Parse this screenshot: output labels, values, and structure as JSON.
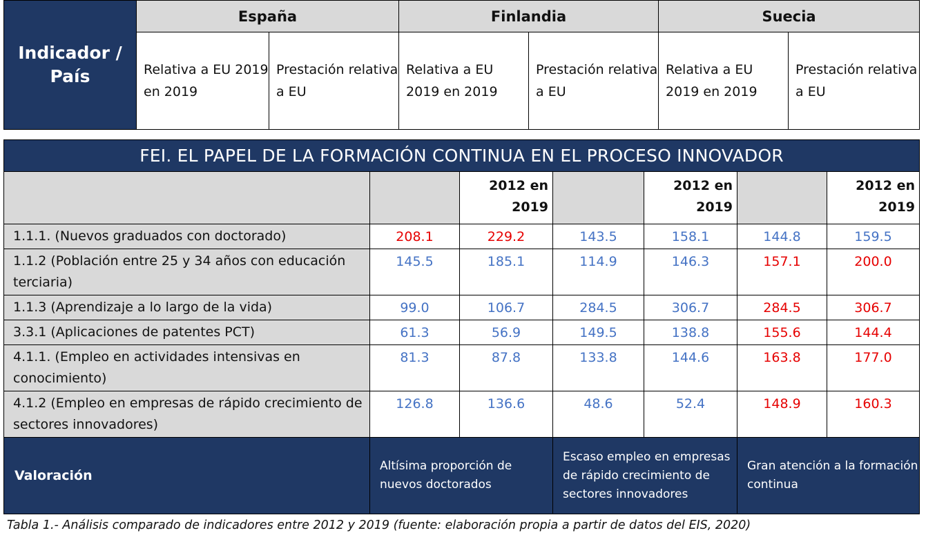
{
  "header": {
    "indicator_label": "Indicador / País",
    "countries": [
      "España",
      "Finlandia",
      "Suecia"
    ],
    "sub_relativa": "Relativa a EU 2019 en 2019",
    "sub_prestacion": "Prestación relativa a EU"
  },
  "table": {
    "title": "FEI. EL PAPEL DE LA FORMACIÓN CONTINUA EN EL PROCESO INNOVADOR",
    "year_header": "2012 en 2019",
    "rows": [
      {
        "label": "1.1.1. (Nuevos graduados con doctorado)",
        "values": [
          "208.1",
          "229.2",
          "143.5",
          "158.1",
          "144.8",
          "159.5"
        ],
        "colors": [
          "red",
          "red",
          "blue",
          "blue",
          "blue",
          "blue"
        ]
      },
      {
        "label": "1.1.2 (Población entre 25 y 34 años con educación terciaria)",
        "values": [
          "145.5",
          "185.1",
          "114.9",
          "146.3",
          "157.1",
          "200.0"
        ],
        "colors": [
          "blue",
          "blue",
          "blue",
          "blue",
          "red",
          "red"
        ]
      },
      {
        "label": "1.1.3 (Aprendizaje a lo largo de la vida)",
        "values": [
          "99.0",
          "106.7",
          "284.5",
          "306.7",
          "284.5",
          "306.7"
        ],
        "colors": [
          "blue",
          "blue",
          "blue",
          "blue",
          "red",
          "red"
        ]
      },
      {
        "label": "3.3.1 (Aplicaciones de patentes PCT)",
        "values": [
          "61.3",
          "56.9",
          "149.5",
          "138.8",
          "155.6",
          "144.4"
        ],
        "colors": [
          "blue",
          "blue",
          "blue",
          "blue",
          "red",
          "red"
        ]
      },
      {
        "label": "4.1.1. (Empleo en actividades intensivas en conocimiento)",
        "values": [
          "81.3",
          "87.8",
          "133.8",
          "144.6",
          "163.8",
          "177.0"
        ],
        "colors": [
          "blue",
          "blue",
          "blue",
          "blue",
          "red",
          "red"
        ]
      },
      {
        "label": "4.1.2 (Empleo en empresas de rápido crecimiento de sectores innovadores)",
        "values": [
          "126.8",
          "136.6",
          "48.6",
          "52.4",
          "148.9",
          "160.3"
        ],
        "colors": [
          "blue",
          "blue",
          "blue",
          "blue",
          "red",
          "red"
        ]
      }
    ],
    "valoracion_label": "Valoración",
    "valoraciones": [
      "Altísima proporción de nuevos doctorados",
      "Escaso empleo en empresas de rápido crecimiento de sectores innovadores",
      "Gran atención a la formación continua"
    ]
  },
  "caption": "Tabla 1.- Análisis comparado de indicadores entre 2012 y 2019 (fuente: elaboración propia a partir de datos del EIS, 2020)",
  "colors": {
    "navy": "#1f3864",
    "gray": "#d9d9d9",
    "blue": "#4472c4",
    "red": "#e60000"
  }
}
